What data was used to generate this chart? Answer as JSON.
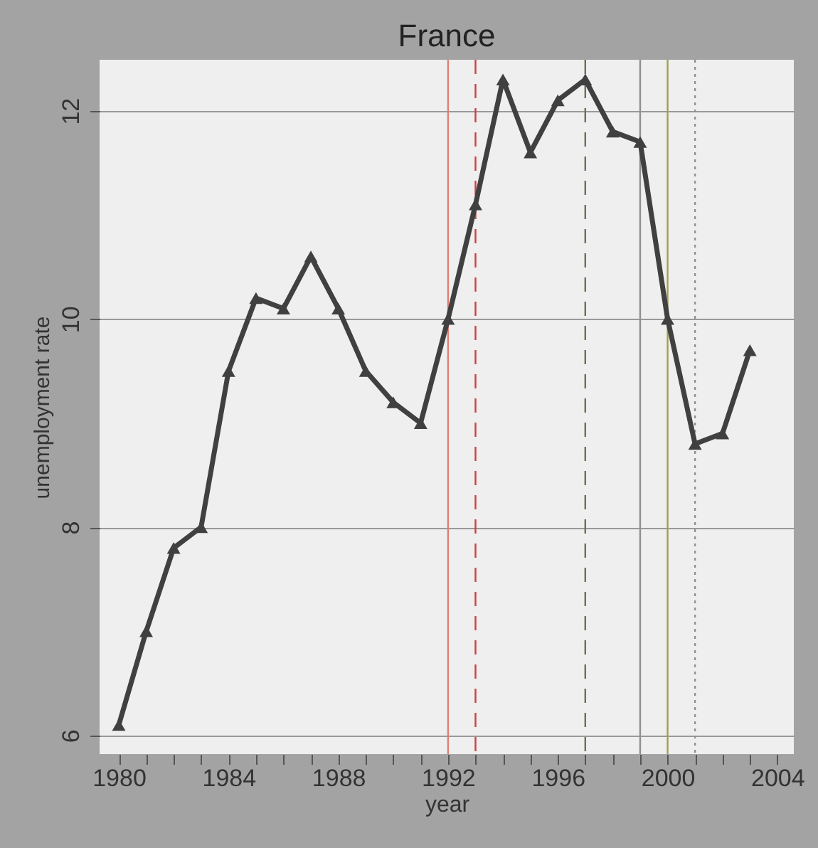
{
  "chart_data": {
    "type": "line",
    "title": "France",
    "xlabel": "year",
    "ylabel": "unemployment rate",
    "x": [
      1980,
      1981,
      1982,
      1983,
      1984,
      1985,
      1986,
      1987,
      1988,
      1989,
      1990,
      1991,
      1992,
      1993,
      1994,
      1995,
      1996,
      1997,
      1998,
      1999,
      2000,
      2001,
      2002,
      2003
    ],
    "series": [
      {
        "color": "#404040",
        "values": [
          6.1,
          7.0,
          7.8,
          8.0,
          9.5,
          10.2,
          10.1,
          10.6,
          10.1,
          9.5,
          9.2,
          9.0,
          10.0,
          11.1,
          12.3,
          11.6,
          12.1,
          12.3,
          11.8,
          11.7,
          10.0,
          8.8,
          8.9,
          9.7
        ]
      }
    ],
    "xlim": [
      1979.3,
      2004.6
    ],
    "ylim": [
      5.82,
      12.49
    ],
    "xticks": [
      1980,
      {
        "value": 1981,
        "label": null
      },
      {
        "value": 1982,
        "label": null
      },
      {
        "value": 1983,
        "label": null
      },
      1984,
      {
        "value": 1985,
        "label": null
      },
      {
        "value": 1986,
        "label": null
      },
      {
        "value": 1987,
        "label": null
      },
      1988,
      {
        "value": 1989,
        "label": null
      },
      {
        "value": 1990,
        "label": null
      },
      {
        "value": 1991,
        "label": null
      },
      1992,
      {
        "value": 1993,
        "label": null
      },
      {
        "value": 1994,
        "label": null
      },
      {
        "value": 1995,
        "label": null
      },
      1996,
      {
        "value": 1997,
        "label": null
      },
      {
        "value": 1998,
        "label": null
      },
      {
        "value": 1999,
        "label": null
      },
      2000,
      {
        "value": 2001,
        "label": null
      },
      {
        "value": 2002,
        "label": null
      },
      {
        "value": 2003,
        "label": null
      },
      2004
    ],
    "yticks": [
      6,
      8,
      10,
      12
    ],
    "grid": "y",
    "marker": "triangle",
    "line_style": "solid",
    "ref_lines": [
      {
        "axis": "x",
        "value": 1992,
        "color": "#e08070",
        "line_style": "solid"
      },
      {
        "axis": "x",
        "value": 1993,
        "color": "#d04040",
        "line_style": "dashed"
      },
      {
        "axis": "x",
        "value": 1997,
        "color": "#707050",
        "line_style": "dashed"
      },
      {
        "axis": "x",
        "value": 1999,
        "color": "#909090",
        "line_style": "solid"
      },
      {
        "axis": "x",
        "value": 2000,
        "color": "#a0a050",
        "line_style": "solid"
      },
      {
        "axis": "x",
        "value": 2001,
        "color": "#909090",
        "line_style": "dotted"
      }
    ]
  }
}
